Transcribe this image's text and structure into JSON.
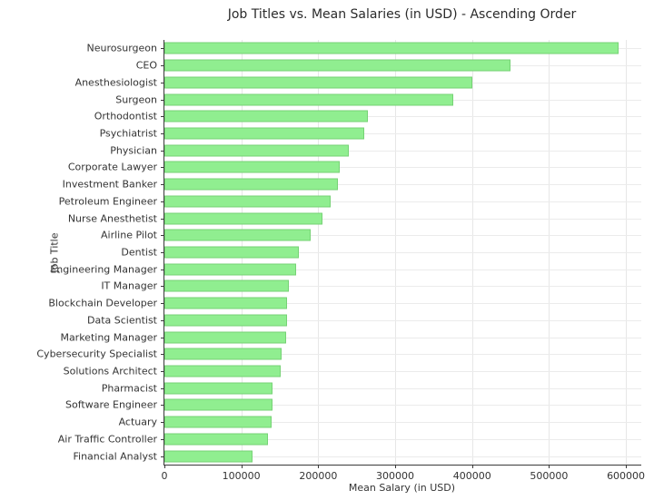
{
  "chart_data": {
    "type": "bar",
    "orientation": "horizontal",
    "title": "Job Titles vs. Mean Salaries (in USD) - Ascending Order",
    "xlabel": "Mean Salary (in USD)",
    "ylabel": "Job Title",
    "categories": [
      "Neurosurgeon",
      "CEO",
      "Anesthesiologist",
      "Surgeon",
      "Orthodontist",
      "Psychiatrist",
      "Physician",
      "Corporate Lawyer",
      "Investment Banker",
      "Petroleum Engineer",
      "Nurse Anesthetist",
      "Airline Pilot",
      "Dentist",
      "Engineering Manager",
      "IT Manager",
      "Blockchain Developer",
      "Data Scientist",
      "Marketing Manager",
      "Cybersecurity Specialist",
      "Solutions Architect",
      "Pharmacist",
      "Software Engineer",
      "Actuary",
      "Air Traffic Controller",
      "Financial Analyst"
    ],
    "values": [
      590000,
      450000,
      400000,
      375000,
      265000,
      260000,
      240000,
      228000,
      225000,
      216000,
      205000,
      190000,
      175000,
      171000,
      162000,
      160000,
      160000,
      158000,
      152000,
      151000,
      141000,
      140000,
      139000,
      135000,
      115000
    ],
    "xlim": [
      0,
      620000
    ],
    "x_ticks": [
      0,
      100000,
      200000,
      300000,
      400000,
      500000,
      600000
    ],
    "sort_order": "ascending-from-bottom",
    "grid": true,
    "legend": "none",
    "colors": {
      "bar_fill": "#90EE90",
      "bar_edge": "#76d275",
      "grid_line": "#e7e7e7",
      "axis_line": "#3a3a3a",
      "text": "#333333"
    }
  }
}
